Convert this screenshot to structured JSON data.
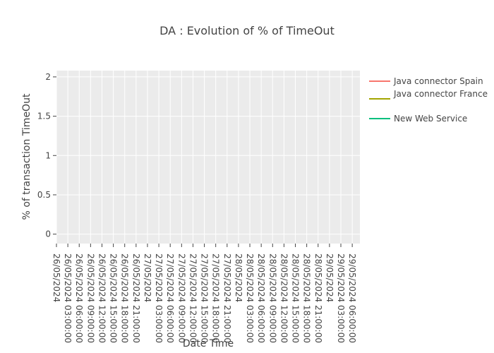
{
  "chart_data": {
    "type": "line",
    "title": "DA : Evolution of % of TimeOut",
    "xlabel": "Date Time",
    "ylabel": "% of transaction TimeOut",
    "ylim": [
      -0.12,
      2.08
    ],
    "y_ticks": [
      0,
      0.5,
      1,
      1.5,
      2
    ],
    "y_tick_labels": [
      "0",
      "0.5",
      "1",
      "1.5",
      "2"
    ],
    "x_tick_labels": [
      "26/05/2024",
      "26/05/2024 03:00:00",
      "26/05/2024 06:00:00",
      "26/05/2024 09:00:00",
      "26/05/2024 12:00:00",
      "26/05/2024 15:00:00",
      "26/05/2024 18:00:00",
      "26/05/2024 21:00:00",
      "27/05/2024",
      "27/05/2024 03:00:00",
      "27/05/2024 06:00:00",
      "27/05/2024 09:00:00",
      "27/05/2024 12:00:00",
      "27/05/2024 15:00:00",
      "27/05/2024 18:00:00",
      "27/05/2024 21:00:00",
      "28/05/2024",
      "28/05/2024 03:00:00",
      "28/05/2024 06:00:00",
      "28/05/2024 09:00:00",
      "28/05/2024 12:00:00",
      "28/05/2024 15:00:00",
      "28/05/2024 18:00:00",
      "28/05/2024 21:00:00",
      "29/05/2024",
      "29/05/2024 03:00:00",
      "29/05/2024 06:00:00"
    ],
    "grid": true,
    "legend_position": "right",
    "series": [
      {
        "name": "Java connector Spain",
        "color": "#F8766D",
        "values": []
      },
      {
        "name": "Java connector France",
        "color": "#A3A500",
        "values": []
      },
      {
        "name": "New Web Service",
        "color": "#00BF7D",
        "values": []
      }
    ]
  }
}
